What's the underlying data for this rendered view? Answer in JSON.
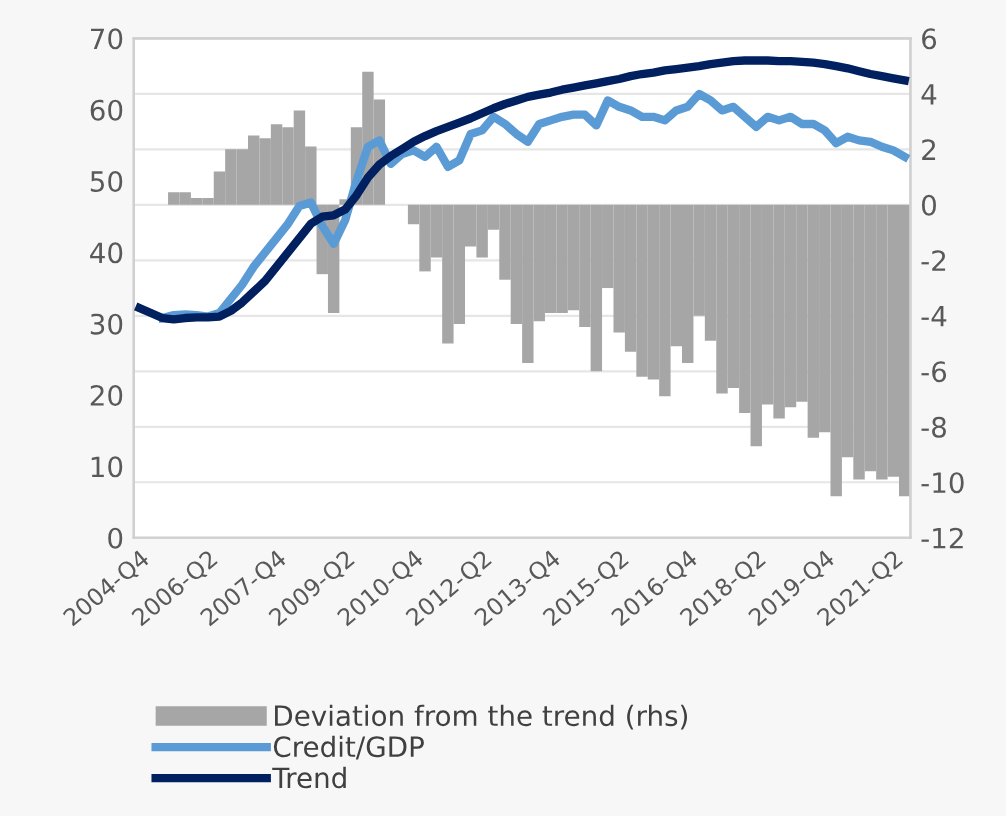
{
  "chart_data": {
    "type": "line",
    "categories": [
      "2004-Q4",
      null,
      null,
      null,
      null,
      null,
      "2006-Q2",
      null,
      null,
      null,
      null,
      null,
      "2007-Q4",
      null,
      null,
      null,
      null,
      null,
      "2009-Q2",
      null,
      null,
      null,
      null,
      null,
      "2010-Q4",
      null,
      null,
      null,
      null,
      null,
      "2012-Q2",
      null,
      null,
      null,
      null,
      null,
      "2013-Q4",
      null,
      null,
      null,
      null,
      null,
      "2015-Q2",
      null,
      null,
      null,
      null,
      null,
      "2016-Q4",
      null,
      null,
      null,
      null,
      null,
      "2018-Q2",
      null,
      null,
      null,
      null,
      null,
      "2019-Q4",
      null,
      null,
      null,
      null,
      null,
      "2021-Q2",
      null
    ],
    "series": [
      {
        "name": "Deviation from the trend (rhs)",
        "type": "bar",
        "axis": "y2",
        "color": "#a6a6a6",
        "values": [
          null,
          null,
          null,
          0.45,
          0.45,
          0.25,
          0.25,
          1.2,
          2.0,
          2.0,
          2.5,
          2.4,
          2.9,
          2.8,
          3.4,
          2.1,
          -2.5,
          -3.9,
          0.2,
          2.8,
          4.8,
          3.8,
          null,
          null,
          -0.7,
          -2.4,
          -1.9,
          -5.0,
          -4.3,
          -1.5,
          -1.9,
          -0.9,
          -2.7,
          -4.3,
          -5.7,
          -4.2,
          -3.9,
          -3.9,
          -3.8,
          -4.4,
          -6.0,
          -3.0,
          -4.6,
          -5.3,
          -6.2,
          -6.3,
          -6.9,
          -5.1,
          -5.7,
          -4.0,
          -4.9,
          -6.8,
          -6.6,
          -7.5,
          -8.7,
          -7.2,
          -7.7,
          -7.3,
          -7.1,
          -8.4,
          -8.2,
          -10.5,
          -9.1,
          -9.9,
          -9.6,
          -9.9,
          -9.8,
          -10.5
        ]
      },
      {
        "name": "Credit/GDP",
        "color": "#5b9bd5",
        "values": [
          null,
          null,
          30.8,
          31.2,
          31.3,
          31.2,
          31.0,
          31.5,
          33.5,
          35.5,
          38.0,
          40.0,
          42.0,
          44.0,
          46.5,
          47.0,
          43.7,
          41.2,
          44.5,
          50.0,
          54.8,
          55.7,
          52.4,
          53.8,
          54.3,
          53.4,
          54.8,
          52.0,
          52.9,
          56.6,
          57.1,
          59.0,
          58.0,
          56.6,
          55.5,
          58.0,
          58.5,
          59.0,
          59.3,
          59.3,
          57.8,
          61.3,
          60.4,
          59.9,
          59.0,
          59.0,
          58.5,
          59.9,
          60.4,
          62.2,
          61.3,
          59.9,
          60.4,
          59.0,
          57.6,
          59.0,
          58.5,
          59.0,
          58.0,
          58.0,
          57.1,
          55.3,
          56.2,
          55.7,
          55.5,
          54.8,
          54.3,
          53.4
        ]
      },
      {
        "name": "Trend",
        "color": "#002060",
        "values": [
          32.2,
          31.5,
          30.8,
          30.6,
          30.8,
          30.9,
          30.9,
          31.0,
          31.8,
          33.0,
          34.5,
          36.0,
          38.0,
          40.0,
          42.0,
          44.0,
          45.0,
          45.2,
          46.0,
          48.0,
          50.5,
          52.3,
          53.5,
          54.5,
          55.5,
          56.3,
          57.0,
          57.6,
          58.2,
          58.8,
          59.5,
          60.2,
          60.8,
          61.3,
          61.8,
          62.1,
          62.4,
          62.8,
          63.1,
          63.4,
          63.7,
          64.0,
          64.3,
          64.7,
          65.0,
          65.2,
          65.5,
          65.7,
          65.9,
          66.1,
          66.4,
          66.6,
          66.8,
          66.9,
          66.9,
          66.9,
          66.8,
          66.8,
          66.7,
          66.6,
          66.4,
          66.1,
          65.8,
          65.4,
          65.0,
          64.7,
          64.4,
          64.1
        ]
      }
    ],
    "ylim": [
      0,
      70
    ],
    "yticks": [
      0,
      10,
      20,
      30,
      40,
      50,
      60,
      70
    ],
    "y2lim": [
      -12,
      6
    ],
    "y2ticks": [
      -12,
      -10,
      -8,
      -6,
      -4,
      -2,
      0,
      2,
      4,
      6
    ],
    "grid": "y",
    "legend": "bottom"
  }
}
